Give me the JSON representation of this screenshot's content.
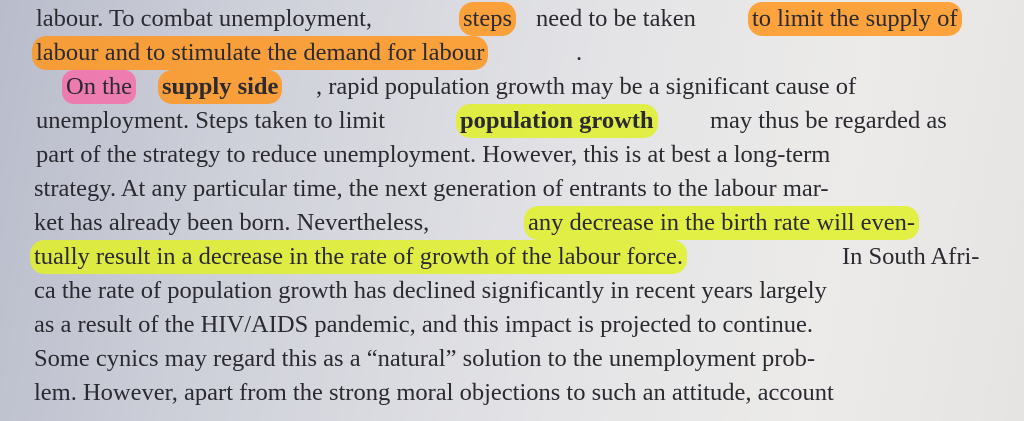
{
  "lines": [
    {
      "parts": [
        "labour. To combat unemployment, ",
        "steps",
        " need to be taken ",
        "to limit the supply of"
      ]
    },
    {
      "parts": [
        "labour and to stimulate the demand for labour",
        "."
      ]
    },
    {
      "parts": [
        "On the ",
        "supply side",
        ", rapid population growth may be a significant cause of"
      ]
    },
    {
      "parts": [
        "unemployment. Steps taken to limit ",
        "population growth",
        " may thus be regarded as"
      ]
    },
    {
      "parts": [
        "part of the strategy to reduce unemployment. However, this is at best a long-term"
      ]
    },
    {
      "parts": [
        "strategy. At any particular time, the next generation of entrants to the labour mar-"
      ]
    },
    {
      "parts": [
        "ket has already been born. Nevertheless, ",
        "any decrease in the birth rate will even-"
      ]
    },
    {
      "parts": [
        "tually result in a decrease in the rate of growth of the labour force.",
        " In South Afri-"
      ]
    },
    {
      "parts": [
        "ca the rate of population growth has declined significantly in recent years largely"
      ]
    },
    {
      "parts": [
        "as a result of the HIV/AIDS pandemic, and this impact is projected to continue."
      ]
    },
    {
      "parts": [
        "Some cynics may regard this as a “natural” solution to the unemployment prob-"
      ]
    },
    {
      "parts": [
        "lem. However, apart from the strong moral objections to such an attitude, account"
      ]
    }
  ],
  "colors": {
    "orange_highlight": "#ff9a1f",
    "pink_highlight": "#f56eaa",
    "yellow_highlight": "#e1f028"
  }
}
